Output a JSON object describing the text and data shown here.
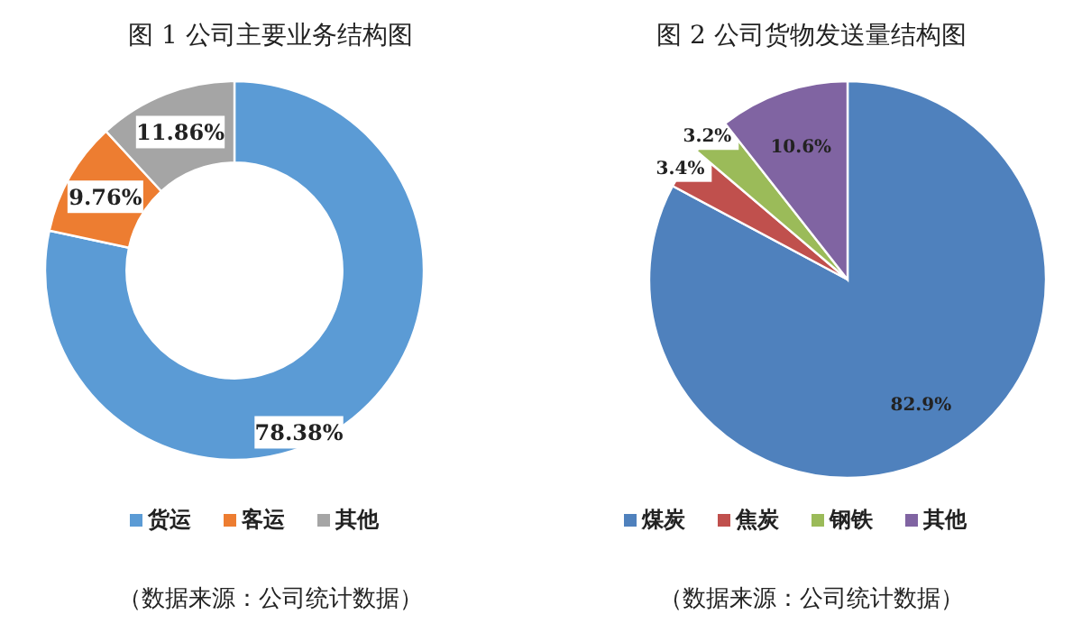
{
  "chart_data": [
    {
      "type": "donut",
      "title": "图 1  公司主要业务结构图",
      "categories": [
        "货运",
        "客运",
        "其他"
      ],
      "values": [
        78.38,
        9.76,
        11.86
      ],
      "colors": [
        "#5b9bd5",
        "#ed7d31",
        "#a5a5a5"
      ],
      "value_labels": [
        "78.38%",
        "9.76%",
        "11.86%"
      ],
      "legend": "bottom",
      "annotations": [
        "（数据来源：公司统计数据）"
      ]
    },
    {
      "type": "pie",
      "title": "图 2  公司货物发送量结构图",
      "categories": [
        "煤炭",
        "焦炭",
        "钢铁",
        "其他"
      ],
      "values": [
        82.9,
        3.4,
        3.2,
        10.6
      ],
      "colors": [
        "#4f81bd",
        "#c0504d",
        "#9bbb59",
        "#8064a2"
      ],
      "value_labels": [
        "82.9%",
        "3.4%",
        "3.2%",
        "10.6%"
      ],
      "legend": "bottom",
      "annotations": [
        "（数据来源：公司统计数据）"
      ]
    }
  ]
}
